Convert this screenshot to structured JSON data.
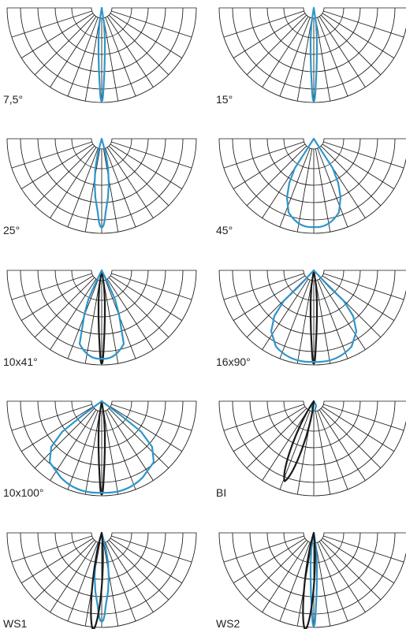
{
  "colors": {
    "grid": "#1a1a1a",
    "beam_blue": "#2f95c9",
    "beam_black": "#1a1a1a",
    "label": "#222222"
  },
  "diagrams": [
    {
      "id": "d1",
      "label": "7,5°",
      "curves": [
        {
          "color": "beam_blue",
          "shape": "narrow-beam"
        }
      ]
    },
    {
      "id": "d2",
      "label": "15°",
      "curves": [
        {
          "color": "beam_blue",
          "shape": "narrow-beam"
        }
      ]
    },
    {
      "id": "d3",
      "label": "25°",
      "curves": [
        {
          "color": "beam_blue",
          "shape": "spot-beam"
        }
      ]
    },
    {
      "id": "d4",
      "label": "45°",
      "curves": [
        {
          "color": "beam_blue",
          "shape": "flood-beam"
        }
      ]
    },
    {
      "id": "d5",
      "label": "10x41°",
      "curves": [
        {
          "color": "beam_black",
          "shape": "narrow-beam"
        },
        {
          "color": "beam_blue",
          "shape": "medium-beam"
        }
      ]
    },
    {
      "id": "d6",
      "label": "16x90°",
      "curves": [
        {
          "color": "beam_black",
          "shape": "narrow-beam"
        },
        {
          "color": "beam_blue",
          "shape": "wide-beam"
        }
      ]
    },
    {
      "id": "d7",
      "label": "10x100°",
      "curves": [
        {
          "color": "beam_black",
          "shape": "narrow-beam"
        },
        {
          "color": "beam_blue",
          "shape": "very-wide-beam"
        }
      ]
    },
    {
      "id": "d8",
      "label": "BI",
      "curves": [
        {
          "color": "beam_blue",
          "shape": "tiny-beam"
        },
        {
          "color": "beam_black",
          "shape": "tilted-beam"
        }
      ]
    },
    {
      "id": "d9",
      "label": "WS1",
      "curves": [
        {
          "color": "beam_blue",
          "shape": "spot-beam"
        },
        {
          "color": "beam_black",
          "shape": "slight-tilt-beam"
        }
      ]
    },
    {
      "id": "d10",
      "label": "WS2",
      "curves": [
        {
          "color": "beam_blue",
          "shape": "narrow-beam"
        },
        {
          "color": "beam_black",
          "shape": "slight-tilt-beam"
        }
      ]
    }
  ]
}
